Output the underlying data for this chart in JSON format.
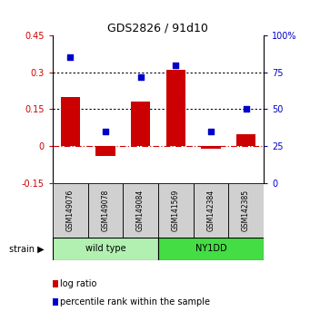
{
  "title": "GDS2826 / 91d10",
  "samples": [
    "GSM149076",
    "GSM149078",
    "GSM149084",
    "GSM141569",
    "GSM142384",
    "GSM142385"
  ],
  "log_ratio": [
    0.2,
    -0.04,
    0.18,
    0.31,
    -0.01,
    0.05
  ],
  "percentile": [
    85,
    35,
    72,
    80,
    35,
    50
  ],
  "groups": [
    {
      "name": "wild type",
      "indices": [
        0,
        1,
        2
      ],
      "color": "#b2f0b2"
    },
    {
      "name": "NY1DD",
      "indices": [
        3,
        4,
        5
      ],
      "color": "#44dd44"
    }
  ],
  "ylim_left": [
    -0.15,
    0.45
  ],
  "ylim_right": [
    0,
    100
  ],
  "yticks_left": [
    -0.15,
    0.0,
    0.15,
    0.3,
    0.45
  ],
  "yticks_right": [
    0,
    25,
    50,
    75,
    100
  ],
  "yticklabels_right": [
    "0",
    "25",
    "50",
    "75",
    "100%"
  ],
  "hlines": [
    0.0,
    0.15,
    0.3
  ],
  "hlines_style": [
    "dashdot",
    "dotted",
    "dotted"
  ],
  "hlines_color": [
    "#cc0000",
    "#000000",
    "#000000"
  ],
  "bar_color": "#cc0000",
  "dot_color": "#0000cc",
  "bar_width": 0.55,
  "group_label": "strain",
  "legend_items": [
    {
      "label": "log ratio",
      "color": "#cc0000"
    },
    {
      "label": "percentile rank within the sample",
      "color": "#0000cc"
    }
  ]
}
